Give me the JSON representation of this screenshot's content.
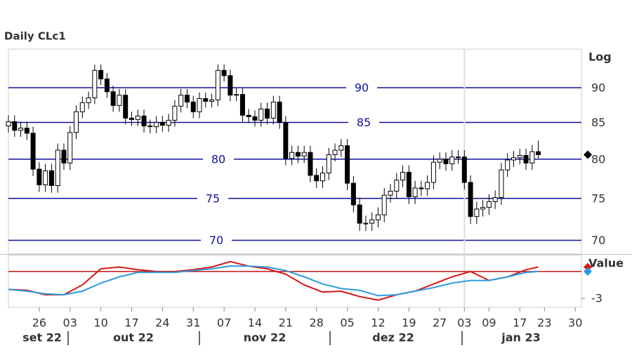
{
  "chart_data": [
    {
      "type": "candlestick",
      "title": "Daily CLc1",
      "y_axis_label": "Log",
      "log_scale": true,
      "open": [
        84.5,
        85.1,
        83.9,
        84.2,
        83.5,
        78.7,
        76.7,
        78.5,
        76.6,
        81.2,
        79.5,
        83.6,
        86.5,
        87.8,
        88.5,
        92.6,
        91.3,
        89.4,
        87.4,
        88.9,
        85.6,
        85.4,
        85.9,
        84.5,
        84.4,
        85.0,
        84.6,
        85.3,
        87.3,
        88.9,
        87.9,
        86.5,
        88.4,
        88.0,
        88.2,
        92.6,
        91.8,
        88.9,
        89.0,
        86.0,
        85.8,
        85.3,
        86.9,
        85.6,
        87.9,
        85.0,
        80.1,
        80.9,
        80.4,
        80.9,
        77.9,
        77.2,
        78.2,
        80.6,
        81.2,
        81.8,
        76.9,
        74.2,
        72.0,
        72.0,
        72.4,
        73.0,
        75.4,
        75.9,
        77.3,
        78.3,
        75.2,
        76.3,
        76.2,
        77.0,
        79.6,
        80.0,
        79.4,
        80.3,
        80.3,
        77.0,
        72.8,
        73.7,
        73.9,
        74.6,
        75.1,
        78.6,
        79.9,
        80.2,
        80.5,
        79.5,
        81.0
      ],
      "high": [
        86.0,
        86.0,
        85.1,
        85.1,
        84.4,
        79.6,
        79.4,
        79.4,
        82.1,
        82.1,
        84.5,
        87.4,
        88.7,
        89.4,
        93.5,
        93.5,
        92.2,
        90.3,
        89.8,
        89.8,
        86.5,
        86.8,
        86.8,
        85.4,
        85.9,
        85.9,
        86.2,
        88.2,
        89.8,
        89.8,
        88.8,
        89.3,
        89.3,
        89.1,
        93.5,
        93.5,
        92.7,
        89.9,
        89.9,
        86.9,
        86.7,
        87.8,
        87.8,
        88.8,
        88.8,
        85.9,
        81.8,
        81.8,
        81.8,
        81.8,
        78.8,
        79.1,
        81.5,
        82.1,
        82.7,
        82.7,
        77.8,
        75.1,
        72.9,
        73.3,
        73.9,
        76.3,
        76.8,
        78.2,
        79.2,
        79.2,
        77.2,
        77.2,
        77.9,
        80.5,
        80.9,
        80.9,
        81.2,
        81.2,
        81.2,
        77.9,
        74.6,
        74.8,
        75.5,
        76.0,
        79.5,
        80.8,
        81.1,
        81.4,
        81.4,
        81.9,
        82.5
      ],
      "low": [
        83.6,
        83.0,
        83.0,
        82.6,
        77.8,
        75.8,
        75.8,
        75.7,
        75.7,
        78.6,
        78.6,
        82.7,
        85.6,
        86.9,
        87.6,
        90.4,
        88.5,
        86.5,
        86.5,
        84.7,
        84.5,
        84.5,
        83.6,
        83.5,
        83.5,
        83.7,
        83.7,
        84.4,
        86.4,
        87.0,
        85.6,
        85.6,
        87.1,
        87.1,
        87.3,
        90.9,
        88.0,
        88.0,
        85.1,
        84.9,
        84.4,
        84.4,
        84.7,
        84.7,
        84.1,
        79.2,
        79.2,
        79.5,
        79.5,
        77.0,
        76.3,
        76.3,
        77.3,
        79.7,
        80.3,
        76.0,
        73.3,
        71.1,
        71.1,
        71.1,
        71.5,
        72.1,
        74.5,
        75.0,
        76.4,
        74.3,
        74.3,
        75.3,
        75.3,
        76.1,
        78.7,
        78.5,
        78.5,
        79.4,
        76.1,
        71.9,
        71.9,
        72.8,
        73.0,
        73.7,
        74.2,
        77.7,
        79.0,
        79.3,
        78.6,
        78.6,
        80.1
      ],
      "close": [
        85.1,
        83.9,
        84.2,
        83.5,
        78.7,
        76.7,
        78.5,
        76.6,
        81.2,
        79.5,
        83.6,
        86.5,
        87.8,
        88.5,
        92.6,
        91.3,
        89.4,
        87.4,
        88.9,
        85.6,
        85.4,
        85.9,
        84.5,
        84.4,
        85.0,
        84.6,
        85.3,
        87.3,
        88.9,
        87.9,
        86.5,
        88.4,
        88.0,
        88.2,
        92.6,
        91.8,
        88.9,
        89.0,
        86.0,
        85.8,
        85.3,
        86.9,
        85.6,
        87.9,
        85.0,
        80.1,
        80.9,
        80.4,
        80.9,
        77.9,
        77.2,
        78.2,
        80.6,
        81.2,
        81.8,
        76.9,
        74.2,
        72.0,
        72.0,
        72.4,
        73.0,
        75.4,
        75.9,
        77.3,
        78.3,
        75.2,
        76.3,
        76.2,
        77.0,
        79.6,
        80.0,
        79.4,
        80.3,
        80.3,
        77.0,
        72.8,
        73.7,
        73.9,
        74.6,
        75.1,
        78.6,
        79.9,
        80.2,
        80.5,
        79.5,
        81.0,
        80.6
      ],
      "up_color": "#ffffff",
      "down_color": "#000000",
      "level_color": "#1010a0",
      "xlim": [
        0,
        93
      ],
      "ylim": [
        68.6,
        95.9
      ],
      "yticks": [
        70,
        75,
        80,
        85,
        90
      ],
      "xticks": [
        {
          "value": 5,
          "label": "26"
        },
        {
          "value": 10,
          "label": "03"
        },
        {
          "value": 15,
          "label": "10"
        },
        {
          "value": 20,
          "label": "17"
        },
        {
          "value": 25,
          "label": "24"
        },
        {
          "value": 30,
          "label": "31"
        },
        {
          "value": 35,
          "label": "07"
        },
        {
          "value": 40,
          "label": "14"
        },
        {
          "value": 45,
          "label": "21"
        },
        {
          "value": 50,
          "label": "28"
        },
        {
          "value": 55,
          "label": "05"
        },
        {
          "value": 60,
          "label": "12"
        },
        {
          "value": 65,
          "label": "19"
        },
        {
          "value": 70,
          "label": "27"
        },
        {
          "value": 74,
          "label": "03"
        },
        {
          "value": 78,
          "label": "09"
        },
        {
          "value": 83,
          "label": "17"
        },
        {
          "value": 87,
          "label": "23"
        },
        {
          "value": 92,
          "label": "30"
        }
      ],
      "months": [
        "set 22",
        "out 22",
        "nov 22",
        "dez 22",
        "jan 23"
      ]
    },
    {
      "type": "line",
      "y_axis_label": "Value",
      "x": [
        0,
        3,
        6,
        9,
        12,
        15,
        18,
        21,
        24,
        27,
        30,
        33,
        36,
        39,
        42,
        45,
        48,
        51,
        54,
        57,
        60,
        63,
        66,
        69,
        72,
        75,
        78,
        81,
        84,
        86
      ],
      "series": [
        {
          "color": "#d81818",
          "values": [
            -2.0,
            -2.1,
            -2.6,
            -2.6,
            -1.5,
            0.3,
            0.5,
            0.2,
            0.0,
            0.0,
            0.2,
            0.5,
            1.1,
            0.6,
            0.3,
            -0.3,
            -1.5,
            -2.3,
            -2.2,
            -2.8,
            -3.2,
            -2.6,
            -2.2,
            -1.4,
            -0.6,
            0.0,
            -1.0,
            -0.6,
            0.2,
            0.5
          ]
        },
        {
          "color": "#2a9ae0",
          "values": [
            -2.0,
            -2.2,
            -2.5,
            -2.6,
            -2.2,
            -1.3,
            -0.6,
            -0.1,
            -0.1,
            -0.1,
            0.1,
            0.3,
            0.6,
            0.6,
            0.5,
            0.1,
            -0.6,
            -1.4,
            -1.9,
            -2.1,
            -2.7,
            -2.6,
            -2.2,
            -1.8,
            -1.3,
            -1.0,
            -1.0,
            -0.6,
            -0.1,
            0.0
          ]
        }
      ],
      "zero_line": 0,
      "zero_line_color": "#c01010",
      "xlim": [
        0,
        93
      ],
      "ylim": [
        -4,
        1.8
      ],
      "yticks": [
        -3
      ]
    }
  ]
}
